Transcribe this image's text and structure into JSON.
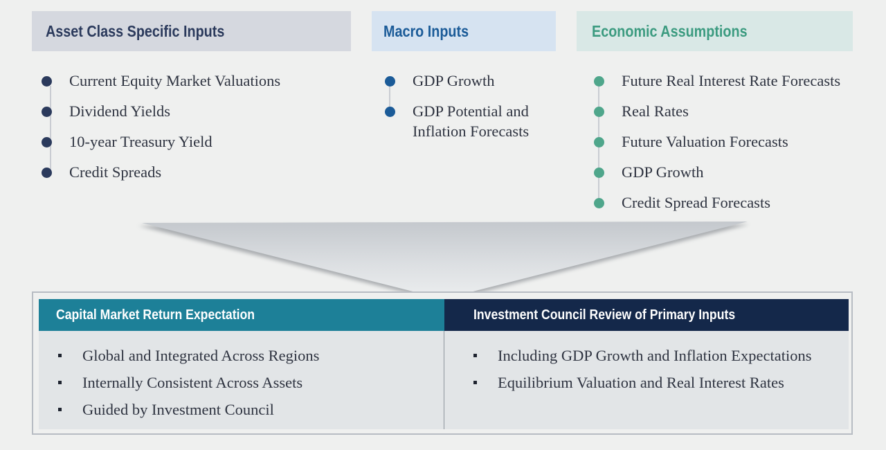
{
  "columns": [
    {
      "title": "Asset Class Specific Inputs",
      "items": [
        "Current Equity Market Valuations",
        "Dividend Yields",
        "10-year Treasury Yield",
        "Credit Spreads"
      ]
    },
    {
      "title": "Macro Inputs",
      "items": [
        "GDP Growth",
        "GDP Potential and",
        "Inflation Forecasts"
      ]
    },
    {
      "title": "Economic Assumptions",
      "items": [
        "Future Real Interest Rate Forecasts",
        "Real Rates",
        "Future Valuation Forecasts",
        "GDP Growth",
        "Credit Spread Forecasts"
      ]
    }
  ],
  "outputs": [
    {
      "title": "Capital Market Return Expectation",
      "items": [
        "Global and Integrated Across Regions",
        "Internally Consistent Across Assets",
        "Guided by Investment Council"
      ]
    },
    {
      "title": "Investment Council Review of Primary Inputs",
      "items": [
        "Including GDP Growth and Inflation Expectations",
        "Equilibrium Valuation and Real Interest Rates"
      ]
    }
  ],
  "colors": {
    "column1": "#2b3a5c",
    "column2": "#1b5b98",
    "column3": "#4fa68b",
    "output1": "#1d8098",
    "output2": "#14284a"
  }
}
